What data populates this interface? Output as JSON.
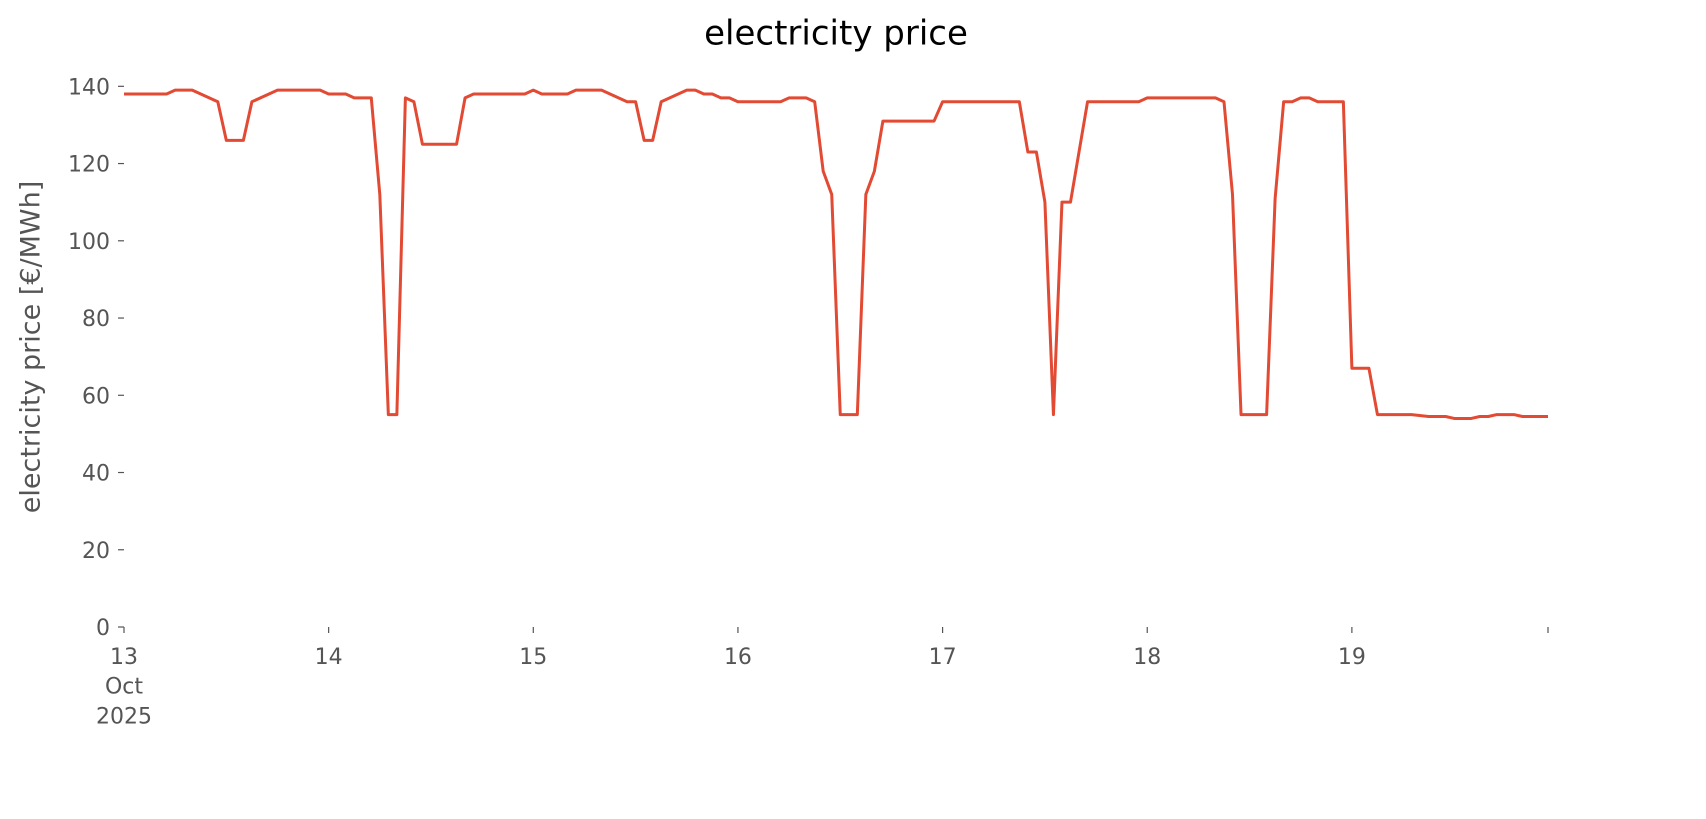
{
  "chart_data": {
    "type": "line",
    "title": "electricity price",
    "ylabel": "electricity price [€/MWh]",
    "x": [
      "2025-10-13T00:00",
      "2025-10-13T05:00",
      "2025-10-13T06:00",
      "2025-10-13T08:00",
      "2025-10-13T11:00",
      "2025-10-13T12:00",
      "2025-10-13T14:00",
      "2025-10-13T15:00",
      "2025-10-13T18:00",
      "2025-10-13T23:00",
      "2025-10-14T00:00",
      "2025-10-14T02:00",
      "2025-10-14T03:00",
      "2025-10-14T05:00",
      "2025-10-14T06:00",
      "2025-10-14T07:00",
      "2025-10-14T08:00",
      "2025-10-14T09:00",
      "2025-10-14T10:00",
      "2025-10-14T11:00",
      "2025-10-14T15:00",
      "2025-10-14T16:00",
      "2025-10-14T17:00",
      "2025-10-14T23:00",
      "2025-10-15T00:00",
      "2025-10-15T01:00",
      "2025-10-15T04:00",
      "2025-10-15T05:00",
      "2025-10-15T08:00",
      "2025-10-15T11:00",
      "2025-10-15T12:00",
      "2025-10-15T13:00",
      "2025-10-15T14:00",
      "2025-10-15T15:00",
      "2025-10-15T18:00",
      "2025-10-15T19:00",
      "2025-10-15T20:00",
      "2025-10-15T21:00",
      "2025-10-15T22:00",
      "2025-10-15T23:00",
      "2025-10-16T00:00",
      "2025-10-16T05:00",
      "2025-10-16T06:00",
      "2025-10-16T08:00",
      "2025-10-16T09:00",
      "2025-10-16T10:00",
      "2025-10-16T11:00",
      "2025-10-16T12:00",
      "2025-10-16T14:00",
      "2025-10-16T15:00",
      "2025-10-16T16:00",
      "2025-10-16T17:00",
      "2025-10-16T23:00",
      "2025-10-17T00:00",
      "2025-10-17T09:00",
      "2025-10-17T10:00",
      "2025-10-17T11:00",
      "2025-10-17T12:00",
      "2025-10-17T13:00",
      "2025-10-17T14:00",
      "2025-10-17T15:00",
      "2025-10-17T17:00",
      "2025-10-17T23:00",
      "2025-10-18T00:00",
      "2025-10-18T08:00",
      "2025-10-18T09:00",
      "2025-10-18T10:00",
      "2025-10-18T11:00",
      "2025-10-18T12:00",
      "2025-10-18T14:00",
      "2025-10-18T15:00",
      "2025-10-18T16:00",
      "2025-10-18T17:00",
      "2025-10-18T18:00",
      "2025-10-18T19:00",
      "2025-10-18T20:00",
      "2025-10-18T23:00",
      "2025-10-19T00:00",
      "2025-10-19T02:00",
      "2025-10-19T03:00",
      "2025-10-19T07:00",
      "2025-10-19T09:00",
      "2025-10-19T11:00",
      "2025-10-19T12:00",
      "2025-10-19T14:00",
      "2025-10-19T15:00",
      "2025-10-19T16:00",
      "2025-10-19T17:00",
      "2025-10-19T19:00",
      "2025-10-19T20:00",
      "2025-10-19T23:00"
    ],
    "series": [
      {
        "name": "electricity price",
        "color": "#E24A33",
        "values": [
          138,
          138,
          139,
          139,
          136,
          126,
          126,
          136,
          139,
          139,
          138,
          138,
          137,
          137,
          112,
          55,
          55,
          137,
          136,
          125,
          125,
          137,
          138,
          138,
          139,
          138,
          138,
          139,
          139,
          136,
          136,
          126,
          126,
          136,
          139,
          139,
          138,
          138,
          137,
          137,
          136,
          136,
          137,
          137,
          136,
          118,
          112,
          55,
          55,
          112,
          118,
          131,
          131,
          136,
          136,
          123,
          123,
          110,
          55,
          110,
          110,
          136,
          136,
          137,
          137,
          136,
          112,
          55,
          55,
          55,
          111,
          136,
          136,
          137,
          137,
          136,
          136,
          67,
          67,
          55,
          55,
          54.5,
          54.5,
          54,
          54,
          54.5,
          54.5,
          55,
          55,
          54.5,
          54.5
        ]
      }
    ],
    "xlim": [
      "2025-10-13T00:00",
      "2025-10-19T23:00"
    ],
    "xticks": [
      {
        "value": "2025-10-13T00:00",
        "label": "13\nOct\n2025"
      },
      {
        "value": "2025-10-14T00:00",
        "label": "14"
      },
      {
        "value": "2025-10-15T00:00",
        "label": "15"
      },
      {
        "value": "2025-10-16T00:00",
        "label": "16"
      },
      {
        "value": "2025-10-17T00:00",
        "label": "17"
      },
      {
        "value": "2025-10-18T00:00",
        "label": "18"
      },
      {
        "value": "2025-10-19T00:00",
        "label": "19"
      }
    ],
    "ylim": [
      0,
      145
    ],
    "yticks": [
      0,
      20,
      40,
      60,
      80,
      100,
      120,
      140
    ]
  }
}
